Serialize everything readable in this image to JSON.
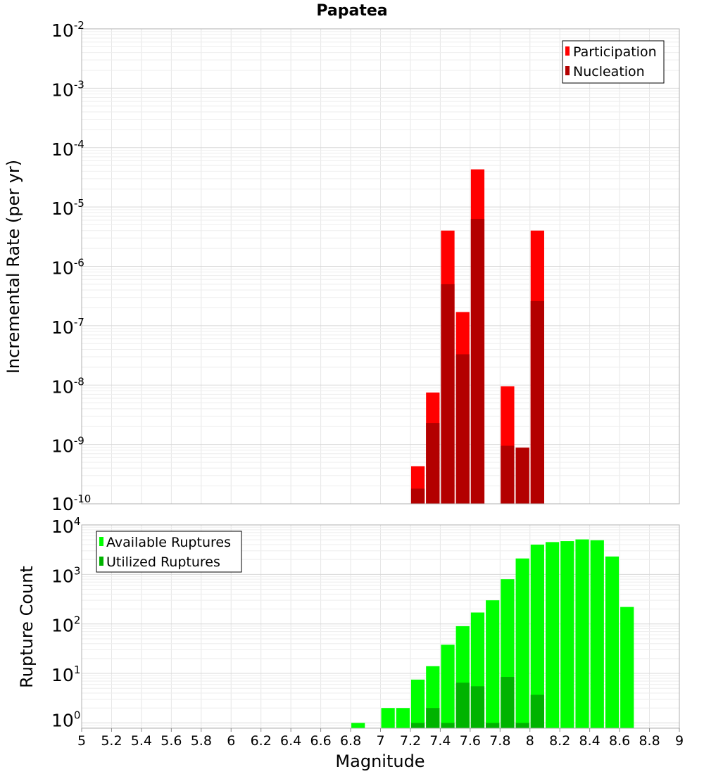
{
  "chart_data": [
    {
      "type": "bar",
      "title": "Papatea",
      "xlabel": "",
      "ylabel": "Incremental Rate (per yr)",
      "yscale": "log",
      "ylim": [
        1e-10,
        0.01
      ],
      "xlim": [
        5,
        9
      ],
      "ytick_exponents": [
        "-10",
        "-9",
        "-8",
        "-7",
        "-6",
        "-5",
        "-4",
        "-3",
        "-2"
      ],
      "legend_position": "top-right",
      "series": [
        {
          "name": "Participation",
          "color": "#ff0000",
          "x": [
            7.25,
            7.35,
            7.45,
            7.55,
            7.65,
            7.85,
            7.95,
            8.05
          ],
          "values": [
            4.3e-10,
            7.5e-09,
            4e-06,
            1.7e-07,
            4.3e-05,
            9.5e-09,
            8.8e-10,
            4e-06
          ]
        },
        {
          "name": "Nucleation",
          "color": "#b30000",
          "x": [
            7.25,
            7.35,
            7.45,
            7.55,
            7.65,
            7.85,
            7.95,
            8.05
          ],
          "values": [
            1.8e-10,
            2.3e-09,
            5e-07,
            3.3e-08,
            6.3e-06,
            9.5e-10,
            8.8e-10,
            2.6e-07
          ]
        }
      ]
    },
    {
      "type": "bar",
      "title": "",
      "xlabel": "Magnitude",
      "ylabel": "Rupture Count",
      "yscale": "log",
      "ylim": [
        0.78,
        10000
      ],
      "xlim": [
        5,
        9
      ],
      "ytick_exponents": [
        "0",
        "1",
        "2",
        "3",
        "4"
      ],
      "xticks": [
        "5",
        "5.2",
        "5.4",
        "5.6",
        "5.8",
        "6",
        "6.2",
        "6.4",
        "6.6",
        "6.8",
        "7",
        "7.2",
        "7.4",
        "7.6",
        "7.8",
        "8",
        "8.2",
        "8.4",
        "8.6",
        "8.8",
        "9"
      ],
      "legend_position": "top-left",
      "series": [
        {
          "name": "Available Ruptures",
          "color": "#00ff00",
          "x": [
            6.85,
            7.05,
            7.15,
            7.25,
            7.35,
            7.45,
            7.55,
            7.65,
            7.75,
            7.85,
            7.95,
            8.05,
            8.15,
            8.25,
            8.35,
            8.45,
            8.55,
            8.65
          ],
          "values": [
            1,
            2,
            2,
            7.5,
            14,
            38,
            90,
            170,
            300,
            800,
            2100,
            4000,
            4500,
            4700,
            5100,
            4900,
            2300,
            220
          ]
        },
        {
          "name": "Utilized Ruptures",
          "color": "#00b300",
          "x": [
            7.25,
            7.35,
            7.45,
            7.55,
            7.65,
            7.75,
            7.85,
            7.95,
            8.05
          ],
          "values": [
            1,
            2,
            1,
            6.5,
            5.5,
            1,
            8.5,
            1,
            3.7
          ]
        }
      ]
    }
  ],
  "ten_label": "10"
}
